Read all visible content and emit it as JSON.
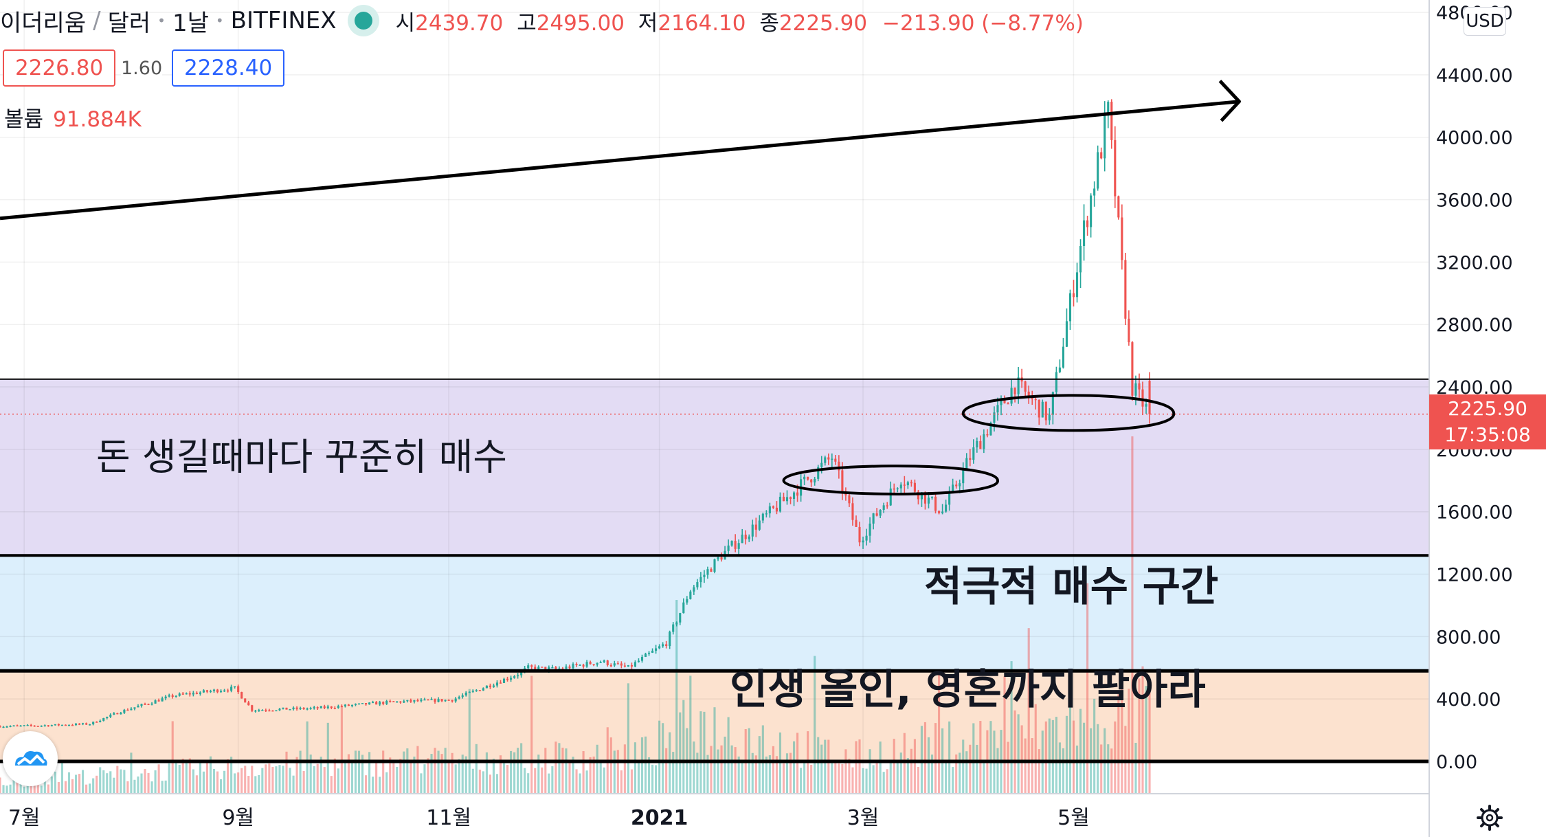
{
  "header": {
    "title_parts": [
      "이더리움",
      "달러",
      "1날",
      "BITFINEX"
    ],
    "ohlc": {
      "o_label": "시",
      "o": "2439.70",
      "h_label": "고",
      "h": "2495.00",
      "l_label": "저",
      "l": "2164.10",
      "c_label": "종",
      "c": "2225.90",
      "chg": "−213.90 (−8.77%)"
    },
    "bid": "2226.80",
    "spread": "1.60",
    "ask": "2228.40",
    "volume_label": "볼륨",
    "volume_value": "91.884K",
    "currency": "USD"
  },
  "last_price": {
    "price": "2225.90",
    "countdown": "17:35:08"
  },
  "colors": {
    "up": "#26a69a",
    "down": "#ef5350",
    "zone1": "#e3dcf4",
    "zone2": "#dceffc",
    "zone3": "#fce2cf",
    "accent": "#2962ff"
  },
  "icons": [
    "tradingview-logo-icon",
    "gear-icon",
    "status-dot-icon"
  ],
  "annotations": {
    "zone1_label": "돈 생길때마다 꾸준히 매수",
    "zone2_label": "적극적 매수 구간",
    "zone3_label": "인생 올인, 영혼까지 팔아라"
  },
  "chart_data": {
    "type": "candlestick",
    "title": "",
    "xlabel": "",
    "ylabel": "",
    "y_ticks": [
      0,
      400,
      800,
      1200,
      1600,
      2000,
      2400,
      2800,
      3200,
      3600,
      4000,
      4400,
      4800
    ],
    "y_tick_labels": [
      "0.00",
      "400.00",
      "800.00",
      "1200.00",
      "1600.00",
      "2000.00",
      "2400.00",
      "2800.00",
      "3200.00",
      "3600.00",
      "4000.00",
      "4400.00",
      "4800.00"
    ],
    "ylim": [
      0,
      4800
    ],
    "x_tick_labels": [
      "7월",
      "9월",
      "11월",
      "2021",
      "3월",
      "5월"
    ],
    "x_tick_dates": [
      "2020-07-01",
      "2020-09-01",
      "2020-11-01",
      "2021-01-01",
      "2021-03-01",
      "2021-05-01"
    ],
    "xlim": [
      "2020-06-24",
      "2021-08-12"
    ],
    "zones": [
      {
        "label": "돈 생길때마다 꾸준히 매수",
        "from": 1320,
        "to": 2450
      },
      {
        "label": "적극적 매수 구간",
        "from": 580,
        "to": 1320
      },
      {
        "label": "인생 올인, 영혼까지 팔아라",
        "from": 0,
        "to": 580
      }
    ],
    "trendline": {
      "from": {
        "date": "2020-06-24",
        "price": 3480
      },
      "to": {
        "date": "2021-06-10",
        "price": 4260
      }
    },
    "last_price_line": 2225.9,
    "highlighted_ranges": [
      {
        "from": "2021-02-06",
        "to": "2021-04-09",
        "low": 1720,
        "high": 1880
      },
      {
        "from": "2021-03-30",
        "to": "2021-05-30",
        "low": 2120,
        "high": 2340
      }
    ],
    "price_series": {
      "dates": [
        "2020-06-24",
        "2020-07-06",
        "2020-07-20",
        "2020-07-29",
        "2020-08-13",
        "2020-08-31",
        "2020-09-05",
        "2020-09-23",
        "2020-10-15",
        "2020-11-02",
        "2020-11-21",
        "2020-11-24",
        "2020-12-02",
        "2020-12-15",
        "2020-12-23",
        "2021-01-03",
        "2021-01-10",
        "2021-01-19",
        "2021-02-05",
        "2021-02-20",
        "2021-02-28",
        "2021-03-12",
        "2021-03-24",
        "2021-04-01",
        "2021-04-14",
        "2021-04-24",
        "2021-05-03",
        "2021-05-11",
        "2021-05-18",
        "2021-05-23"
      ],
      "close": [
        225,
        230,
        240,
        320,
        420,
        470,
        330,
        340,
        380,
        395,
        560,
        600,
        590,
        640,
        600,
        760,
        1100,
        1320,
        1650,
        1950,
        1420,
        1820,
        1600,
        1950,
        2420,
        2200,
        3300,
        4150,
        2400,
        2226
      ]
    },
    "volume_series": {
      "dates": [
        "2020-06-24",
        "2020-09-02",
        "2020-12-27",
        "2021-01-11",
        "2021-02-25",
        "2021-05-19"
      ],
      "relative": [
        0.15,
        0.35,
        0.5,
        0.9,
        0.45,
        1
      ]
    }
  }
}
